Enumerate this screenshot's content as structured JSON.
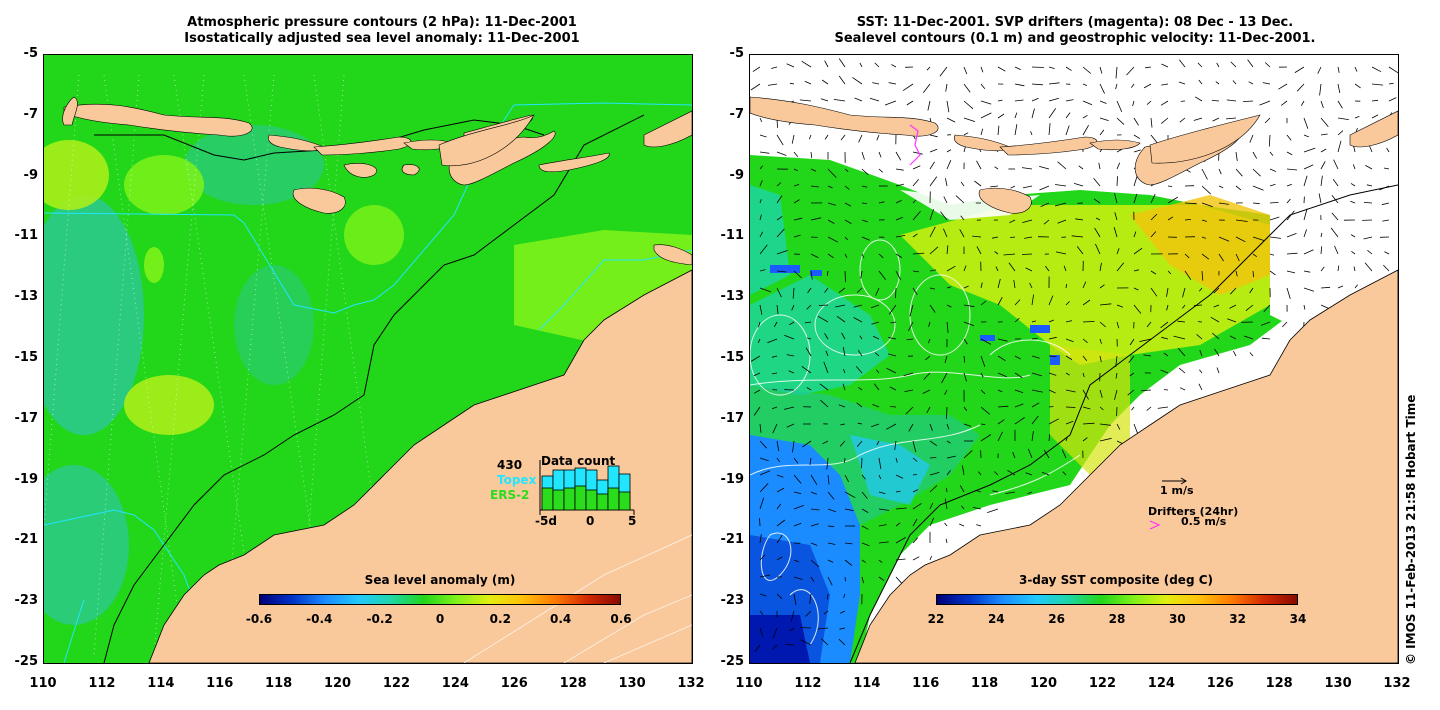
{
  "left": {
    "title1": "Atmospheric pressure contours (2 hPa): 11-Dec-2001",
    "title2": "Isostatically adjusted sea level anomaly: 11-Dec-2001",
    "colorbar_title": "Sea level anomaly (m)",
    "colorbar_ticks": [
      "-0.6",
      "-0.4",
      "-0.2",
      "0",
      "0.2",
      "0.4",
      "0.6"
    ],
    "data_count": {
      "title": "Data count",
      "max_label": "430",
      "series": [
        "Topex",
        "ERS-2"
      ],
      "xticks": [
        "-5d",
        "0",
        "5"
      ],
      "topex_values": [
        0.85,
        1.0,
        1.0,
        1.05,
        1.0,
        0.75,
        1.1,
        0.9
      ],
      "ers_values": [
        0.55,
        0.5,
        0.55,
        0.6,
        0.5,
        0.4,
        0.55,
        0.45
      ]
    }
  },
  "right": {
    "title1": "SST: 11-Dec-2001. SVP drifters (magenta): 08 Dec - 13 Dec.",
    "title2": "Sealevel contours (0.1 m) and geostrophic velocity: 11-Dec-2001.",
    "colorbar_title": "3-day SST composite (deg C)",
    "colorbar_ticks": [
      "22",
      "24",
      "26",
      "28",
      "30",
      "32",
      "34"
    ],
    "vector_label": "1 m/s",
    "drifters_label": "Drifters (24hr)",
    "drifter_speed": "0.5 m/s"
  },
  "axes": {
    "lat_ticks": [
      "-5",
      "-7",
      "-9",
      "-11",
      "-13",
      "-15",
      "-17",
      "-19",
      "-21",
      "-23",
      "-25"
    ],
    "lon_ticks": [
      "110",
      "112",
      "114",
      "116",
      "118",
      "120",
      "122",
      "124",
      "126",
      "128",
      "130",
      "132"
    ]
  },
  "credit": "© IMOS 11-Feb-2013 21:58 Hobart Time",
  "colors": {
    "land": "#f9c89b",
    "sea_green": "#22d61a",
    "sea_light": "#7ef21a",
    "sea_teal": "#2ec7a0",
    "topex": "#22e5ff",
    "ers": "#2bdc1c",
    "drifter": "#ff33ff"
  }
}
